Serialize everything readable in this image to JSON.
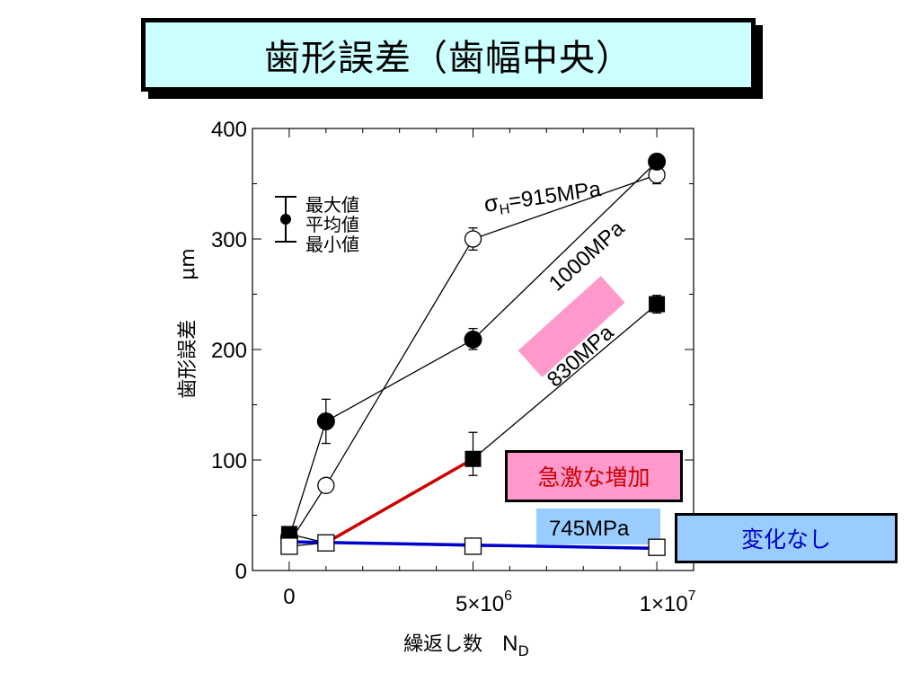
{
  "title": "歯形誤差（歯幅中央）",
  "callouts": {
    "increase": "急激な増加",
    "no_change": "変化なし"
  },
  "colors": {
    "title_bg": "#ccffff",
    "increase_bg": "#ff99cc",
    "increase_text": "#cc0000",
    "no_change_bg": "#99ccff",
    "no_change_text": "#0000cc",
    "label_830_bg": "#ff99cc",
    "label_745_bg": "#99ccff",
    "trend_red": "#cc0000",
    "trend_blue": "#0000cc"
  },
  "chart_data": {
    "type": "line",
    "xlabel": "繰返し数",
    "xlabel_symbol": "N",
    "xlabel_subscript": "D",
    "ylabel": "歯形誤差",
    "ylabel_unit": "μm",
    "ylim": [
      0,
      400
    ],
    "xlim": [
      -1000000,
      11000000
    ],
    "yticks": [
      {
        "value": 0,
        "label": "0"
      },
      {
        "value": 100,
        "label": "100"
      },
      {
        "value": 200,
        "label": "200"
      },
      {
        "value": 300,
        "label": "300"
      },
      {
        "value": 400,
        "label": "400"
      }
    ],
    "xticks": [
      {
        "value": 0,
        "label": "0"
      },
      {
        "value": 5000000,
        "label_base": "5×10",
        "label_exp": "6"
      },
      {
        "value": 10000000,
        "label_base": "1×10",
        "label_exp": "7"
      }
    ],
    "legend_lines": [
      "最大値",
      "平均値",
      "最小値"
    ],
    "legend_position": "top-left",
    "series": [
      {
        "name": "σH=915MPa",
        "name_sigma": "σ",
        "name_sub": "H",
        "name_rest": "=915MPa",
        "marker": "open-circle",
        "points": [
          {
            "x": 0,
            "y": 25,
            "min": 22,
            "max": 28
          },
          {
            "x": 1000000,
            "y": 77,
            "min": 72,
            "max": 82
          },
          {
            "x": 5000000,
            "y": 300,
            "min": 290,
            "max": 310
          },
          {
            "x": 10000000,
            "y": 358,
            "min": 350,
            "max": 364
          }
        ]
      },
      {
        "name": "1000MPa",
        "marker": "filled-circle",
        "points": [
          {
            "x": 0,
            "y": 30,
            "min": 27,
            "max": 34
          },
          {
            "x": 1000000,
            "y": 135,
            "min": 115,
            "max": 155
          },
          {
            "x": 5000000,
            "y": 209,
            "min": 200,
            "max": 219
          },
          {
            "x": 10000000,
            "y": 370,
            "min": 365,
            "max": 374
          }
        ]
      },
      {
        "name": "830MPa",
        "marker": "filled-square",
        "points": [
          {
            "x": 0,
            "y": 33,
            "min": 30,
            "max": 36
          },
          {
            "x": 1000000,
            "y": 25,
            "min": 22,
            "max": 28
          },
          {
            "x": 5000000,
            "y": 101,
            "min": 86,
            "max": 125
          },
          {
            "x": 10000000,
            "y": 241,
            "min": 233,
            "max": 249
          }
        ]
      },
      {
        "name": "745MPa",
        "marker": "open-square",
        "points": [
          {
            "x": 0,
            "y": 22,
            "min": 20,
            "max": 24
          },
          {
            "x": 1000000,
            "y": 25,
            "min": 23,
            "max": 27
          },
          {
            "x": 5000000,
            "y": 22,
            "min": 20,
            "max": 24
          },
          {
            "x": 10000000,
            "y": 21,
            "min": 19,
            "max": 23
          }
        ]
      }
    ],
    "trend_lines": [
      {
        "color": "red",
        "from": {
          "x": 1000000,
          "y": 25
        },
        "to": {
          "x": 5000000,
          "y": 101
        }
      },
      {
        "color": "blue",
        "from": {
          "x": 0,
          "y": 26
        },
        "to": {
          "x": 10000000,
          "y": 20
        }
      }
    ]
  }
}
